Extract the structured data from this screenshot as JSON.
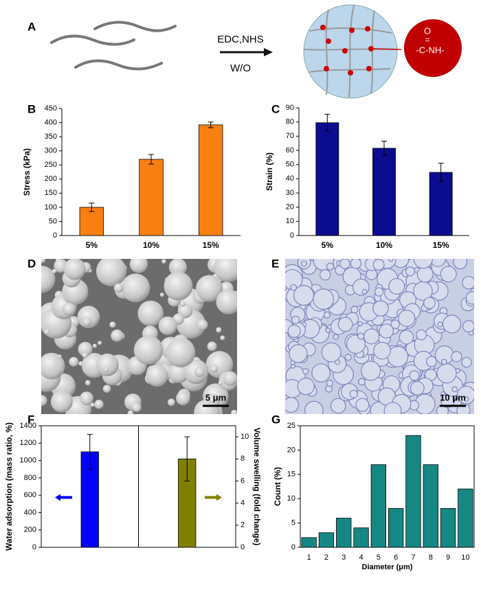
{
  "scheme": {
    "label": "A",
    "reagents": "EDC,NHS",
    "condition": "W/O",
    "group": [
      "O",
      "=",
      "-C-NH-"
    ]
  },
  "micrographs": [
    {
      "label": "D",
      "scale_bar": "5 μm"
    },
    {
      "label": "E",
      "scale_bar": "10 μm"
    }
  ],
  "chart_data": [
    {
      "type": "bar",
      "panel": "B",
      "ylabel": "Stress (kPa)",
      "categories": [
        "5%",
        "10%",
        "15%"
      ],
      "values": [
        100,
        270,
        392
      ],
      "errors": [
        15,
        17,
        10
      ],
      "color": "#f88010",
      "ylim": [
        0,
        450
      ],
      "yticks": [
        0,
        50,
        100,
        150,
        200,
        250,
        300,
        350,
        400,
        450
      ]
    },
    {
      "type": "bar",
      "panel": "C",
      "ylabel": "Strain (%)",
      "categories": [
        "5%",
        "10%",
        "15%"
      ],
      "values": [
        79.5,
        61.5,
        44.5
      ],
      "errors": [
        6,
        5,
        6.5
      ],
      "color": "#0c0c90",
      "ylim": [
        0,
        90
      ],
      "yticks": [
        0,
        10,
        20,
        30,
        40,
        50,
        60,
        70,
        80,
        90
      ]
    },
    {
      "type": "bar",
      "panel": "F",
      "ylabel": "Water adsorption (mass ratio, %)",
      "y2label": "Volume swelling (fold change)",
      "categories": [
        null,
        null
      ],
      "series": [
        {
          "values": [
            1100,
            null
          ],
          "errors": [
            200,
            null
          ],
          "color": "#0000ff",
          "axis": "y"
        },
        {
          "values": [
            null,
            8
          ],
          "errors": [
            null,
            2
          ],
          "color": "#808000",
          "axis": "y2"
        }
      ],
      "ylim": [
        0,
        1400
      ],
      "yticks": [
        0,
        200,
        400,
        600,
        800,
        1000,
        1200,
        1400
      ],
      "y2lim": [
        0,
        11
      ],
      "y2ticks": [
        0,
        2,
        4,
        6,
        8,
        10
      ]
    },
    {
      "type": "bar",
      "panel": "G",
      "xlabel": "Diameter (μm)",
      "ylabel": "Count (%)",
      "categories": [
        1,
        2,
        3,
        4,
        5,
        6,
        7,
        8,
        9,
        10
      ],
      "values": [
        2,
        3,
        6,
        4,
        17,
        8,
        23,
        17,
        8,
        12
      ],
      "color": "#168884",
      "ylim": [
        0,
        25
      ],
      "yticks": [
        0,
        5,
        10,
        15,
        20,
        25
      ]
    }
  ]
}
